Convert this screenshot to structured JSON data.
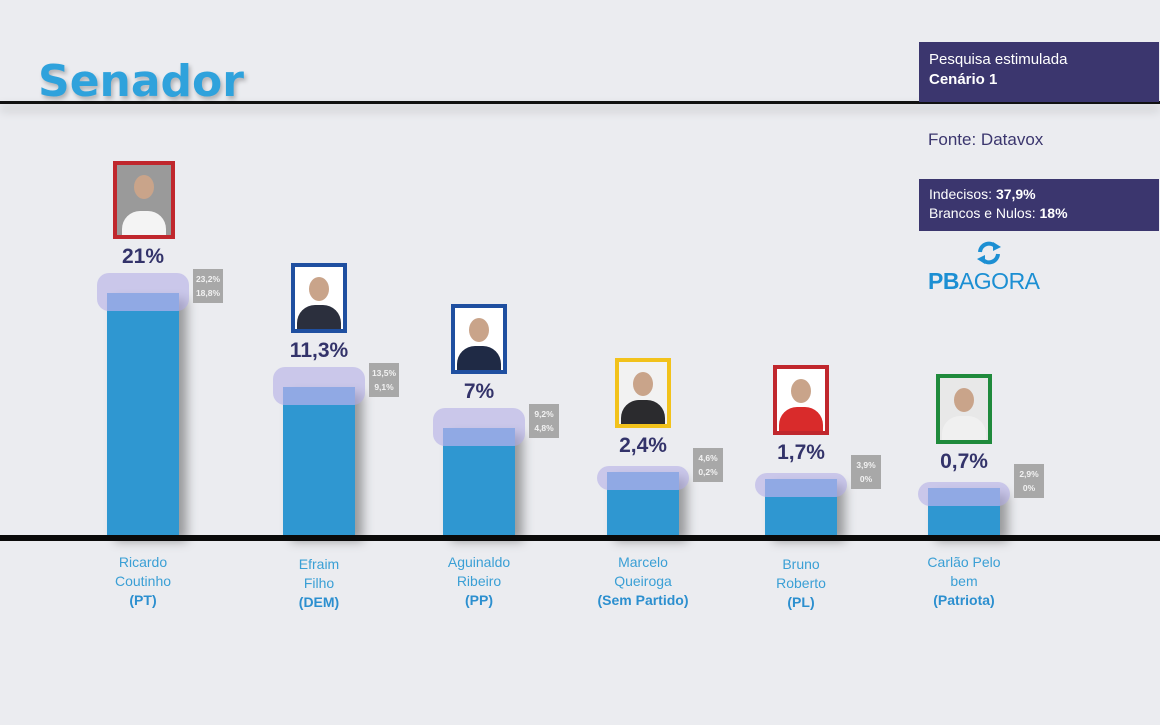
{
  "header": {
    "title": "Senador"
  },
  "info": {
    "survey_type": "Pesquisa estimulada",
    "scenario": "Cenário 1",
    "source": "Fonte: Datavox",
    "undecided_label": "Indecisos:",
    "undecided_value": "37,9%",
    "blank_null_label": "Brancos e Nulos:",
    "blank_null_value": "18%"
  },
  "logo": {
    "part1": "PB",
    "part2": "AGORA",
    "icon": "refresh-arrows-icon"
  },
  "colors": {
    "bar": "#2f97d1",
    "title": "#2fa2dc",
    "panel": "#3b366e"
  },
  "chart_data": {
    "type": "bar",
    "title": "Senador",
    "xlabel": "",
    "ylabel": "",
    "ylim": [
      0,
      25
    ],
    "grid": false,
    "categories": [
      "Ricardo Coutinho",
      "Efraim Filho",
      "Aguinaldo Ribeiro",
      "Marcelo Queiroga",
      "Bruno Roberto",
      "Carlão Pelo bem"
    ],
    "values": [
      21,
      11.3,
      7,
      2.4,
      1.7,
      0.7
    ],
    "value_labels": [
      "21%",
      "11,3%",
      "7%",
      "2,4%",
      "1,7%",
      "0,7%"
    ],
    "upper_bound": [
      23.2,
      13.5,
      9.2,
      4.6,
      3.9,
      2.9
    ],
    "upper_labels": [
      "23,2%",
      "13,5%",
      "9,2%",
      "4,6%",
      "3,9%",
      "2,9%"
    ],
    "lower_bound": [
      18.8,
      9.1,
      4.8,
      0.2,
      0,
      0
    ],
    "lower_labels": [
      "18,8%",
      "9,1%",
      "4,8%",
      "0,2%",
      "0%",
      "0%"
    ],
    "candidates": [
      {
        "first": "Ricardo",
        "second": "Coutinho",
        "party": "(PT)",
        "frame_color": "#c0272d",
        "photo_bg": "#9a9a9a",
        "shirt": "#f4f4f4"
      },
      {
        "first": "Efraim",
        "second": "Filho",
        "party": "(DEM)",
        "frame_color": "#1f4fa0",
        "photo_bg": "#ffffff",
        "shirt": "#2b2f3d"
      },
      {
        "first": "Aguinaldo",
        "second": "Ribeiro",
        "party": "(PP)",
        "frame_color": "#1f4fa0",
        "photo_bg": "#ffffff",
        "shirt": "#1f2a45"
      },
      {
        "first": "Marcelo",
        "second": "Queiroga",
        "party": "(Sem Partido)",
        "frame_color": "#f2c21b",
        "photo_bg": "#f2f2f2",
        "shirt": "#2b2b2e"
      },
      {
        "first": "Bruno",
        "second": "Roberto",
        "party": "(PL)",
        "frame_color": "#c0272d",
        "photo_bg": "#ffffff",
        "shirt": "#d92b2b"
      },
      {
        "first": "Carlão Pelo",
        "second": "bem",
        "party": "(Patriota)",
        "frame_color": "#1f8a3c",
        "photo_bg": "#e8e8e8",
        "shirt": "#f0f0f0"
      }
    ]
  }
}
